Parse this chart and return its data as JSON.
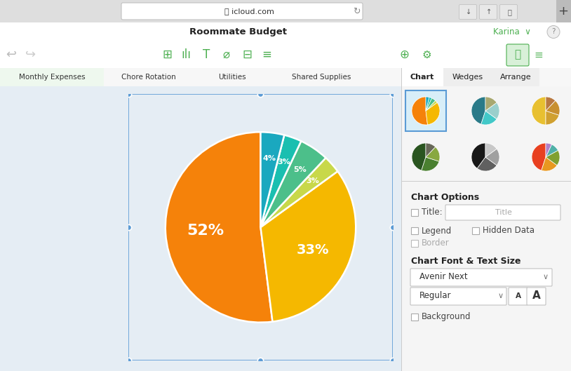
{
  "pie_values": [
    52,
    33,
    3,
    5,
    3,
    4
  ],
  "pie_colors": [
    "#F5820A",
    "#F5B800",
    "#C8D84A",
    "#4CBF8A",
    "#1ABFB0",
    "#1AA8BF"
  ],
  "pie_labels": [
    "52%",
    "33%",
    "3%",
    "5%",
    "3%",
    "4%"
  ],
  "pie_startangle": 90,
  "tab_text": [
    "Monthly Expenses",
    "Chore Rotation",
    "Utilities",
    "Shared Supplies"
  ],
  "sidebar_tabs": [
    "Chart",
    "Wedges",
    "Arrange"
  ],
  "title_text": "Roommate Budget",
  "url_text": "icloud.com",
  "user_text": "Karina",
  "chart_options_title": "Chart Options",
  "font_section_title": "Chart Font & Text Size",
  "font_name": "Avenir Next",
  "font_style": "Regular",
  "label_title": "Title:",
  "label_legend": "Legend",
  "label_hidden": "Hidden Data",
  "label_border": "Border",
  "label_background": "Background",
  "thumb_data": [
    {
      "vals": [
        52,
        33,
        3,
        5,
        3,
        4
      ],
      "colors": [
        "#F5820A",
        "#F5B800",
        "#C8D84A",
        "#4CBF8A",
        "#1ABFB0",
        "#1AA8BF"
      ]
    },
    {
      "vals": [
        45,
        20,
        20,
        15
      ],
      "colors": [
        "#2A7A88",
        "#42C8C8",
        "#9ACFCC",
        "#A8A870"
      ]
    },
    {
      "vals": [
        50,
        20,
        18,
        12
      ],
      "colors": [
        "#E8C030",
        "#D0A030",
        "#C89030",
        "#B87840"
      ]
    },
    {
      "vals": [
        45,
        25,
        18,
        12
      ],
      "colors": [
        "#2A5520",
        "#4A8030",
        "#88A840",
        "#686858"
      ]
    },
    {
      "vals": [
        40,
        25,
        20,
        15
      ],
      "colors": [
        "#181818",
        "#606060",
        "#A0A0A0",
        "#C8C8C8"
      ]
    },
    {
      "vals": [
        45,
        20,
        18,
        10,
        7
      ],
      "colors": [
        "#E84020",
        "#E89820",
        "#80A030",
        "#50B0A8",
        "#B080C8"
      ]
    }
  ],
  "browser_bg": "#DCDCDC",
  "titlebar_bg": "#FFFFFF",
  "toolbar_bg": "#FFFFFF",
  "tabbar_bg": "#F7F7F7",
  "content_bg": "#E5EDF4",
  "sidebar_bg": "#F5F5F5",
  "tab_active_bg": "#EEF8EE",
  "selection_color": "#5B9BD5"
}
